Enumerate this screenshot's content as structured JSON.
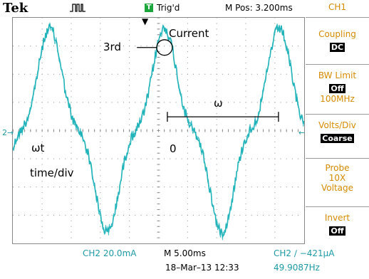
{
  "header": {
    "brand": "Tek",
    "acquire_icon": "run-pulse-icon",
    "trigger_badge": "T",
    "trigger_status": "Trig'd",
    "m_pos": "M Pos: 3.200ms"
  },
  "side_menu": {
    "channel": "CH1",
    "coupling_label": "Coupling",
    "coupling_value": "DC",
    "bw_label": "BW Limit",
    "bw_value": "Off",
    "bw_sub": "100MHz",
    "volts_label": "Volts/Div",
    "volts_value": "Coarse",
    "probe_label1": "Probe",
    "probe_label2": "10X",
    "probe_label3": "Voltage",
    "invert_label": "Invert",
    "invert_value": "Off"
  },
  "status": {
    "ch2_scale": "CH2  20.0mA",
    "timebase": "M 5.00ms",
    "trigger": "CH2 ∕ −421µA",
    "datetime": "18–Mar–13 12:33",
    "frequency": "49.9087Hz"
  },
  "annotations": {
    "current": "Current",
    "third": "3rd",
    "omega": "ω",
    "omega_t": "ωt",
    "zero": "0",
    "time_div": "time/div"
  },
  "markers": {
    "ground_marker": "2→",
    "trigger_level_marker": "←",
    "trigger_position_marker": "▼"
  },
  "colors": {
    "trace": "#21b3b9",
    "accent": "#d48b00",
    "cyan_text": "#1e9aa6"
  }
}
